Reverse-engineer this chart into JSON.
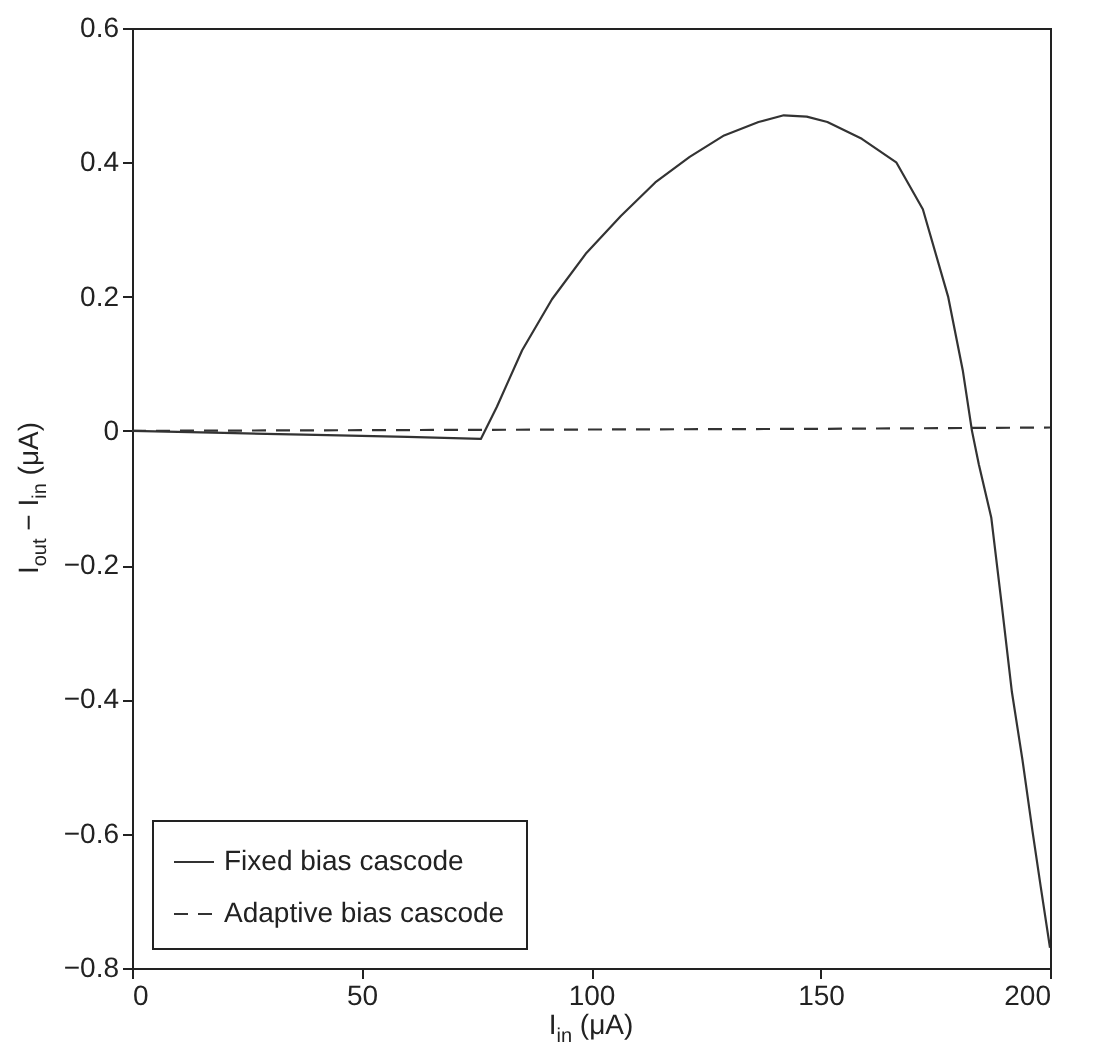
{
  "chart_data": {
    "type": "line",
    "xlabel": "I$_{in}$  (μA)",
    "ylabel": "I$_{out}$ − I$_{in}$  (μA)",
    "series": [
      {
        "name": "Fixed bias cascode",
        "color": "#333333",
        "line_style": "solid",
        "x": [
          0,
          20,
          40,
          60,
          76,
          79.5,
          85,
          91.5,
          99,
          106.5,
          114,
          121.5,
          129,
          136.5,
          142,
          147,
          151.5,
          159,
          166.5,
          172.3,
          177.8,
          181,
          183,
          184.5,
          187.2,
          189.5,
          191.7,
          194,
          196.2,
          198,
          200
        ],
        "values": [
          0,
          -0.003,
          -0.006,
          -0.009,
          -0.012,
          0.036,
          0.12,
          0.196,
          0.265,
          0.32,
          0.37,
          0.408,
          0.44,
          0.46,
          0.47,
          0.468,
          0.46,
          0.435,
          0.4,
          0.33,
          0.2,
          0.09,
          0,
          -0.05,
          -0.129,
          -0.26,
          -0.389,
          -0.49,
          -0.597,
          -0.68,
          -0.77
        ]
      },
      {
        "name": "Adaptive bias cascode",
        "color": "#333333",
        "line_style": "dashed",
        "x": [
          0,
          50,
          100,
          150,
          200
        ],
        "values": [
          0,
          0.001,
          0.002,
          0.003,
          0.005
        ]
      }
    ],
    "xlim": [
      0,
      200
    ],
    "xticks": [
      0,
      50,
      100,
      150,
      200
    ],
    "ylim": [
      -0.8,
      0.6
    ],
    "yticks": [
      -0.8,
      -0.6,
      -0.4,
      -0.2,
      0,
      0.2,
      0.4,
      0.6
    ],
    "legend": "bottom left"
  }
}
